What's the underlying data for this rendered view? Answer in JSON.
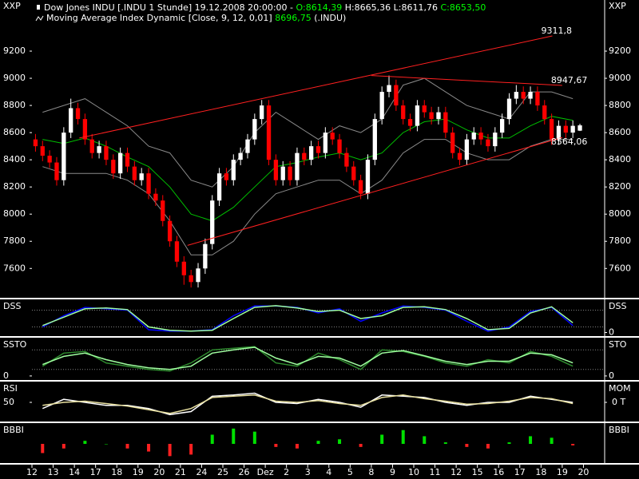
{
  "chart_data": [
    {
      "type": "candlestick",
      "legend_text": "Dow Jones INDU [.INDU  1 Stunde] 19.12.2008 20:00:00 - ",
      "ohlc_labels": [
        "O:8614,39",
        "H:8665,36",
        "L:8611,76",
        "C:8653,50"
      ],
      "ma_legend": "Moving Average Index Dynamic [Close, 9, 12, 0,01] ",
      "ma_value": "8696,75",
      "ma_suffix": " (.INDU)",
      "ylabel": "XXP",
      "up_color": "#ffffff",
      "down_color": "#ff0000",
      "open": [
        8550,
        8500,
        8430,
        8380,
        8250,
        8600,
        8780,
        8700,
        8550,
        8450,
        8500,
        8400,
        8300,
        8450,
        8350,
        8250,
        8300,
        8150,
        8100,
        7950,
        7800,
        7650,
        7550,
        7500,
        7600,
        7780,
        8100,
        8300,
        8250,
        8400,
        8450,
        8550,
        8700,
        8800,
        8400,
        8250,
        8350,
        8250,
        8450,
        8400,
        8500,
        8450,
        8600,
        8550,
        8450,
        8350,
        8250,
        8150,
        8400,
        8700,
        8900,
        8950,
        8800,
        8700,
        8650,
        8800,
        8750,
        8700,
        8750,
        8600,
        8450,
        8400,
        8550,
        8600,
        8550,
        8500,
        8600,
        8700,
        8850,
        8900,
        8850,
        8900,
        8800,
        8700,
        8550,
        8650,
        8600,
        8614.39
      ],
      "high": [
        8590,
        8540,
        8470,
        8420,
        8640,
        8850,
        8820,
        8740,
        8590,
        8540,
        8540,
        8440,
        8490,
        8490,
        8390,
        8340,
        8340,
        8190,
        8140,
        7990,
        7840,
        7690,
        7590,
        7640,
        7820,
        8140,
        8340,
        8340,
        8440,
        8490,
        8590,
        8740,
        8840,
        8840,
        8440,
        8390,
        8390,
        8490,
        8490,
        8540,
        8540,
        8640,
        8640,
        8590,
        8490,
        8390,
        8290,
        8440,
        8740,
        8940,
        9020,
        8990,
        8840,
        8740,
        8840,
        8840,
        8790,
        8790,
        8790,
        8640,
        8490,
        8590,
        8640,
        8640,
        8590,
        8640,
        8740,
        8890,
        8950,
        8940,
        8940,
        8940,
        8840,
        8740,
        8690,
        8690,
        8690,
        8665.36
      ],
      "low": [
        8460,
        8390,
        8340,
        8210,
        8210,
        8560,
        8660,
        8510,
        8410,
        8410,
        8360,
        8260,
        8260,
        8310,
        8210,
        8210,
        8110,
        8060,
        7910,
        7760,
        7610,
        7480,
        7460,
        7460,
        7560,
        7740,
        8060,
        8210,
        8210,
        8360,
        8410,
        8510,
        8660,
        8360,
        8210,
        8210,
        8210,
        8210,
        8360,
        8360,
        8410,
        8410,
        8510,
        8410,
        8310,
        8210,
        8110,
        8110,
        8360,
        8660,
        8860,
        8760,
        8660,
        8610,
        8610,
        8710,
        8660,
        8660,
        8560,
        8410,
        8360,
        8360,
        8510,
        8510,
        8460,
        8460,
        8560,
        8660,
        8810,
        8810,
        8810,
        8760,
        8660,
        8510,
        8510,
        8560,
        8560,
        8611.76
      ],
      "close": [
        8500,
        8430,
        8380,
        8250,
        8600,
        8780,
        8700,
        8550,
        8450,
        8500,
        8400,
        8300,
        8450,
        8350,
        8250,
        8300,
        8150,
        8100,
        7950,
        7800,
        7650,
        7550,
        7500,
        7600,
        7780,
        8100,
        8300,
        8250,
        8400,
        8450,
        8550,
        8700,
        8800,
        8400,
        8250,
        8350,
        8250,
        8450,
        8400,
        8500,
        8450,
        8600,
        8550,
        8450,
        8350,
        8250,
        8150,
        8400,
        8700,
        8900,
        8950,
        8800,
        8700,
        8650,
        8800,
        8750,
        8700,
        8750,
        8600,
        8450,
        8400,
        8550,
        8600,
        8550,
        8500,
        8600,
        8700,
        8850,
        8900,
        8850,
        8900,
        8800,
        8700,
        8550,
        8650,
        8600,
        8650,
        8653.5
      ],
      "series": [
        {
          "color": "#8a8a8a",
          "values": [
            8750,
            8800,
            8850,
            8750,
            8650,
            8500,
            8450,
            8250,
            8200,
            8350,
            8600,
            8750,
            8650,
            8550,
            8650,
            8600,
            8700,
            8950,
            9000,
            8900,
            8800,
            8750,
            8700,
            8900,
            8900,
            8850
          ]
        },
        {
          "color": "#8a8a8a",
          "values": [
            8350,
            8300,
            8300,
            8300,
            8250,
            8150,
            7950,
            7700,
            7700,
            7800,
            8000,
            8150,
            8200,
            8250,
            8250,
            8150,
            8250,
            8450,
            8550,
            8550,
            8450,
            8400,
            8400,
            8500,
            8550,
            8550
          ]
        },
        {
          "color": "#00c000",
          "values": [
            8550,
            8520,
            8560,
            8500,
            8420,
            8350,
            8200,
            8000,
            7950,
            8050,
            8200,
            8350,
            8380,
            8420,
            8450,
            8400,
            8450,
            8600,
            8680,
            8700,
            8620,
            8560,
            8560,
            8650,
            8720,
            8690
          ]
        }
      ],
      "ylim": [
        7390,
        9400
      ],
      "yticks": [
        7600,
        7800,
        8000,
        8200,
        8400,
        8600,
        8800,
        9000,
        9200
      ],
      "ytick_side": "both",
      "xlim": [
        0,
        81
      ],
      "xticks": [
        {
          "value": 0,
          "label": "12"
        },
        {
          "value": 3,
          "label": "13"
        },
        {
          "value": 6,
          "label": "14"
        },
        {
          "value": 9,
          "label": "17"
        },
        {
          "value": 12,
          "label": "18"
        },
        {
          "value": 15,
          "label": "19"
        },
        {
          "value": 18,
          "label": "20"
        },
        {
          "value": 21,
          "label": "21"
        },
        {
          "value": 24,
          "label": "24"
        },
        {
          "value": 27,
          "label": "25"
        },
        {
          "value": 30,
          "label": "26"
        },
        {
          "value": 33,
          "label": "Dez"
        },
        {
          "value": 36,
          "label": "2"
        },
        {
          "value": 39,
          "label": "3"
        },
        {
          "value": 42,
          "label": "4"
        },
        {
          "value": 45,
          "label": "5"
        },
        {
          "value": 48,
          "label": "8"
        },
        {
          "value": 51,
          "label": "9"
        },
        {
          "value": 54,
          "label": "10"
        },
        {
          "value": 57,
          "label": "11"
        },
        {
          "value": 60,
          "label": "12"
        },
        {
          "value": 63,
          "label": "15"
        },
        {
          "value": 66,
          "label": "16"
        },
        {
          "value": 69,
          "label": "17"
        },
        {
          "value": 72,
          "label": "18"
        },
        {
          "value": 75,
          "label": "19"
        },
        {
          "value": 78,
          "label": "20"
        }
      ],
      "trendlines": [
        {
          "color": "#ff2020",
          "x": [
            6.7,
            73.6
          ],
          "y": [
            8560,
            9311.8
          ],
          "label": "9311,8"
        },
        {
          "color": "#ff2020",
          "x": [
            48,
            75
          ],
          "y": [
            9020,
            8947.67
          ],
          "label": "8947,67"
        },
        {
          "color": "#ff2020",
          "x": [
            22,
            75
          ],
          "y": [
            7770,
            8564.06
          ],
          "label": "8564,06"
        }
      ]
    },
    {
      "type": "line",
      "label_left": "DSS",
      "label_right": "DSS",
      "ylim": [
        -10,
        110
      ],
      "ref_lines": [
        20,
        80
      ],
      "yticks": [
        0
      ],
      "ytick_side": "right",
      "series": [
        {
          "color": "#0000ff",
          "values": [
            20,
            60,
            90,
            85,
            80,
            10,
            5,
            5,
            10,
            60,
            95,
            95,
            90,
            70,
            85,
            40,
            70,
            95,
            90,
            80,
            40,
            5,
            20,
            75,
            90,
            25
          ]
        },
        {
          "color": "#a0ffa0",
          "values": [
            25,
            55,
            85,
            88,
            82,
            20,
            8,
            5,
            8,
            50,
            90,
            96,
            88,
            75,
            80,
            50,
            60,
            90,
            92,
            82,
            50,
            10,
            15,
            70,
            92,
            35
          ]
        }
      ]
    },
    {
      "type": "line",
      "label_left": "SSTO",
      "label_right": "STO",
      "ylim": [
        -10,
        110
      ],
      "ref_lines": [
        20,
        80
      ],
      "yticks": [
        0
      ],
      "ytick_side": "both",
      "series": [
        {
          "color": "#2e8b2e",
          "values": [
            30,
            70,
            75,
            40,
            30,
            20,
            15,
            40,
            80,
            85,
            90,
            40,
            30,
            70,
            50,
            20,
            80,
            75,
            60,
            40,
            30,
            50,
            40,
            75,
            60,
            30
          ]
        },
        {
          "color": "#a0ffa0",
          "values": [
            35,
            60,
            70,
            50,
            35,
            25,
            20,
            30,
            70,
            80,
            88,
            55,
            35,
            60,
            55,
            30,
            70,
            78,
            62,
            45,
            35,
            45,
            45,
            70,
            65,
            40
          ]
        }
      ]
    },
    {
      "type": "line",
      "label_left": "RSI",
      "label_right": "MOM",
      "ylim": [
        20,
        80
      ],
      "yticks": [
        50
      ],
      "ytick_side": "left",
      "y2lim": [
        -30,
        30
      ],
      "y2ticks": [
        {
          "value": 0,
          "label": "0 T"
        }
      ],
      "series": [
        {
          "color": "#ffffff",
          "values": [
            40,
            55,
            50,
            45,
            45,
            40,
            30,
            35,
            60,
            62,
            65,
            50,
            48,
            55,
            50,
            42,
            62,
            60,
            58,
            50,
            45,
            50,
            50,
            60,
            55,
            50
          ]
        },
        {
          "color": "#e8e0a0",
          "axis": "y2",
          "values": [
            -5,
            0,
            2,
            -2,
            -6,
            -12,
            -18,
            -10,
            8,
            10,
            12,
            2,
            0,
            3,
            -2,
            -5,
            8,
            12,
            6,
            2,
            -3,
            -2,
            2,
            8,
            6,
            -2
          ]
        }
      ]
    },
    {
      "type": "bar",
      "label_left": "BBBI",
      "label_right": "BBBI",
      "ylim": [
        -1.2,
        1.2
      ],
      "up_color": "#00e000",
      "down_color": "#ff2020",
      "values": [
        -0.6,
        -0.3,
        0.2,
        0.0,
        -0.3,
        -0.5,
        -0.8,
        -0.7,
        0.6,
        1.0,
        0.8,
        -0.2,
        -0.3,
        0.2,
        0.3,
        -0.2,
        0.6,
        0.9,
        0.5,
        0.1,
        -0.2,
        -0.3,
        0.1,
        0.5,
        0.4,
        -0.1
      ]
    }
  ]
}
